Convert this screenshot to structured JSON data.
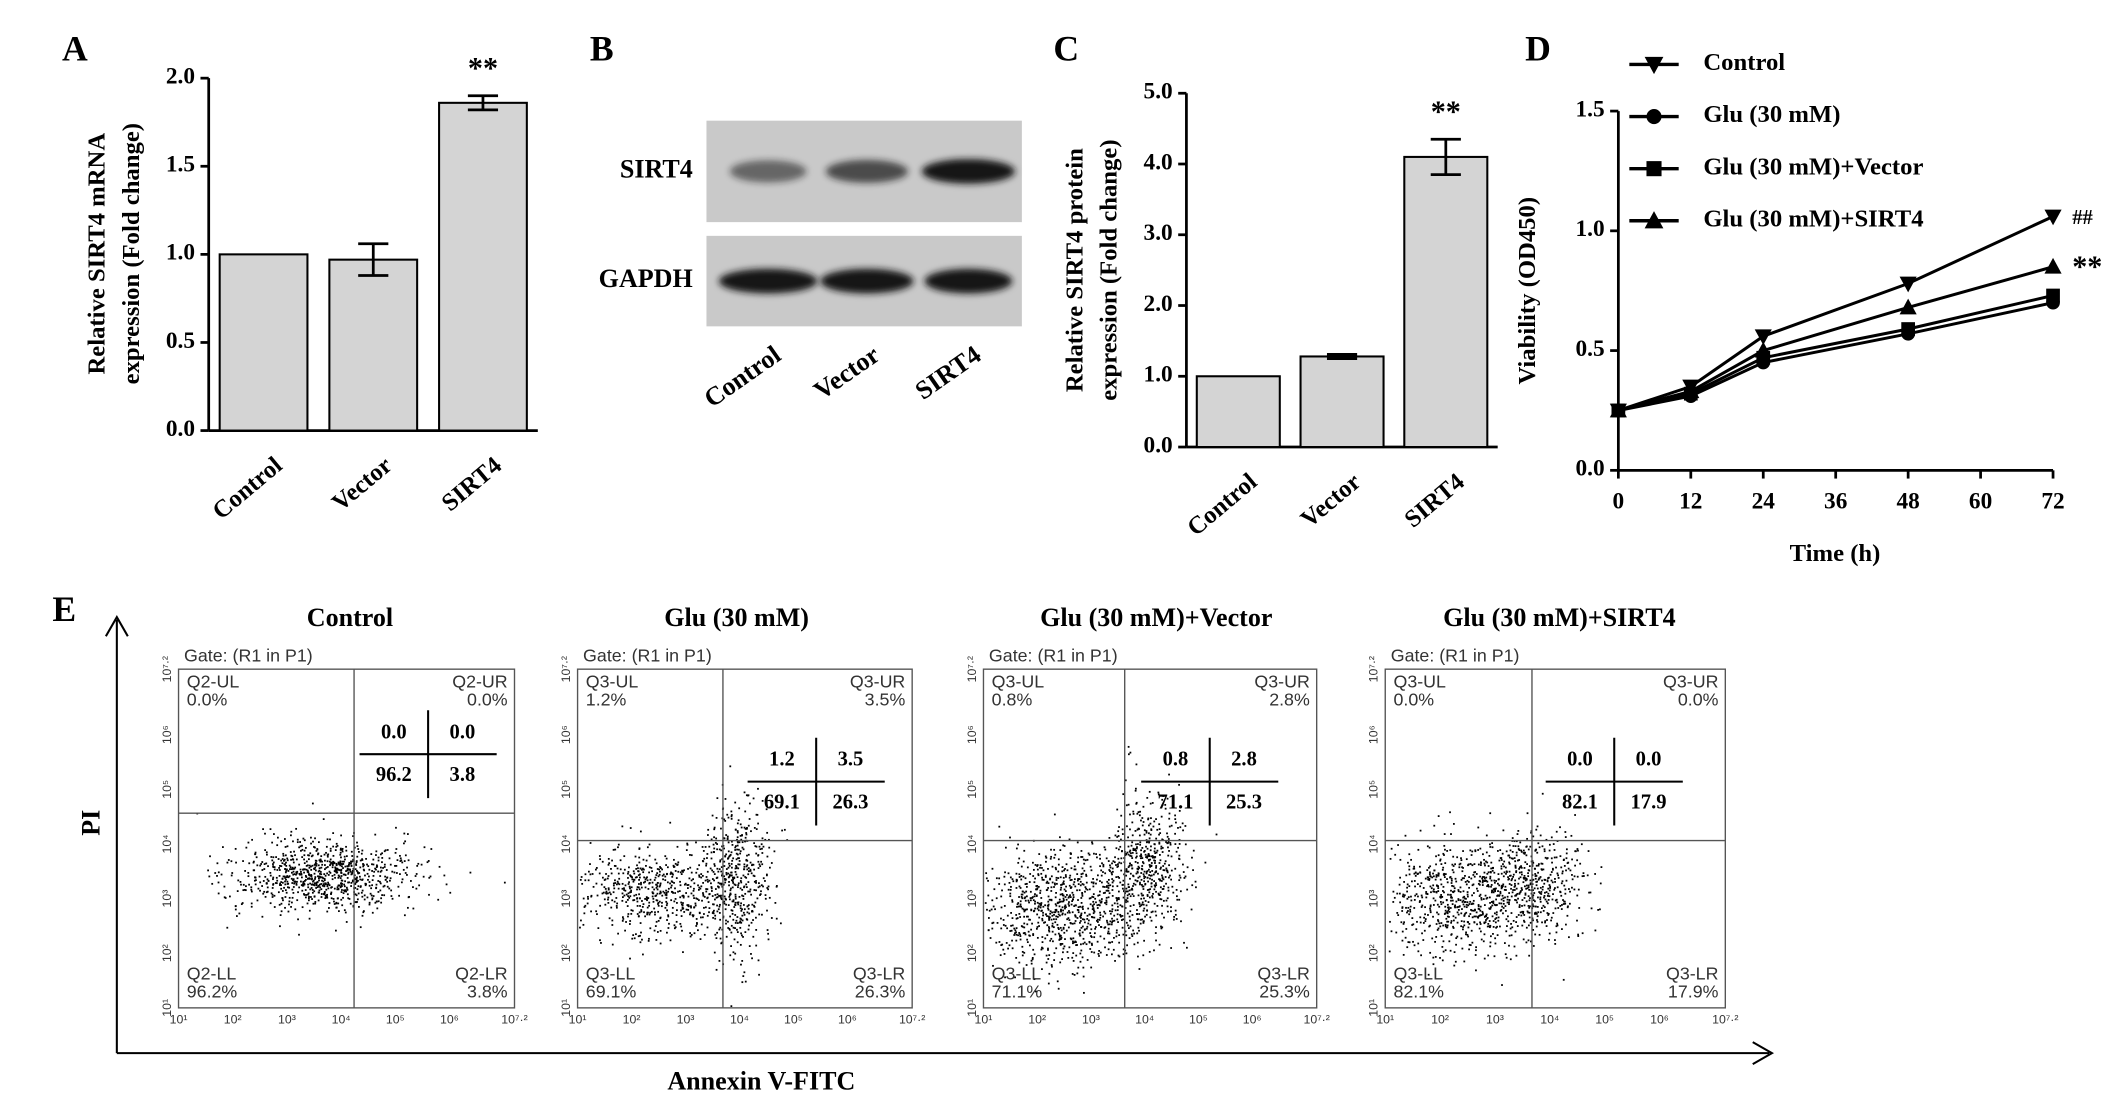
{
  "chart_data": [
    {
      "panel": "A",
      "type": "bar",
      "ylabel": [
        "Relative SIRT4 mRNA",
        "expression (Fold change)"
      ],
      "categories": [
        "Control",
        "Vector",
        "SIRT4"
      ],
      "values": [
        1.0,
        0.97,
        1.86
      ],
      "errors": [
        null,
        0.09,
        0.04
      ],
      "color": "#d4d4d4",
      "ylim": [
        0,
        2.0
      ],
      "yticks": [
        {
          "value": 0,
          "label": "0.0"
        },
        0.5,
        {
          "value": 1,
          "label": "1.0"
        },
        1.5,
        {
          "value": 2,
          "label": "2.0"
        }
      ],
      "annotations": [
        {
          "text": "**",
          "category": 2
        }
      ]
    },
    {
      "panel": "C",
      "type": "bar",
      "ylabel": [
        "Relative SIRT4 protein",
        "expression (Fold change)"
      ],
      "categories": [
        "Control",
        "Vector",
        "SIRT4"
      ],
      "values": [
        1.0,
        1.28,
        4.1
      ],
      "errors": [
        null,
        0.03,
        0.25
      ],
      "color": "#d4d4d4",
      "ylim": [
        0,
        5.0
      ],
      "yticks": [
        {
          "value": 0,
          "label": "0.0"
        },
        {
          "value": 1,
          "label": "1.0"
        },
        {
          "value": 2,
          "label": "2.0"
        },
        {
          "value": 3,
          "label": "3.0"
        },
        {
          "value": 4,
          "label": "4.0"
        },
        {
          "value": 5,
          "label": "5.0"
        }
      ],
      "annotations": [
        {
          "text": "**",
          "category": 2
        }
      ]
    },
    {
      "panel": "D",
      "type": "line",
      "ylabel": "Viability (OD450)",
      "xlabel": "Time (h)",
      "x": [
        0,
        12,
        24,
        48,
        72
      ],
      "xlim": [
        0,
        72
      ],
      "xticks": [
        0,
        12,
        24,
        36,
        48,
        60,
        72
      ],
      "ylim": [
        0,
        1.5
      ],
      "yticks": [
        {
          "value": 0,
          "label": "0.0"
        },
        0.5,
        {
          "value": 1,
          "label": "1.0"
        },
        1.5
      ],
      "legend": "upper left",
      "series": [
        {
          "name": "Control",
          "color": "#000000",
          "marker": "triangle-down",
          "values": [
            0.25,
            0.35,
            0.56,
            0.78,
            1.06
          ]
        },
        {
          "name": "Glu (30 mM)",
          "color": "#000000",
          "marker": "circle",
          "values": [
            0.25,
            0.31,
            0.45,
            0.57,
            0.7
          ]
        },
        {
          "name": "Glu (30 mM)+Vector",
          "color": "#000000",
          "marker": "square",
          "values": [
            0.25,
            0.32,
            0.47,
            0.59,
            0.73
          ]
        },
        {
          "name": "Glu (30 mM)+SIRT4",
          "color": "#000000",
          "marker": "triangle-up",
          "values": [
            0.25,
            0.33,
            0.5,
            0.68,
            0.85
          ]
        }
      ],
      "annotations": [
        {
          "text": "##",
          "series": 0
        },
        {
          "text": "**",
          "series": 3
        }
      ]
    }
  ],
  "blot": {
    "panel": "B",
    "rows": [
      "SIRT4",
      "GAPDH"
    ],
    "lanes": [
      "Control",
      "Vector",
      "SIRT4"
    ]
  },
  "flow": {
    "panel": "E",
    "ylabel": "PI",
    "xlabel": "Annexin V-FITC",
    "axis_ticks": [
      "10¹",
      "10²",
      "10³",
      "10⁴",
      "10⁵",
      "10⁶",
      "10⁷·²"
    ],
    "plots": [
      {
        "title": "Control",
        "gate": "Gate: (R1 in P1)",
        "quadrants": [
          {
            "name": "Q2-UL",
            "percent": "0.0%"
          },
          {
            "name": "Q2-UR",
            "percent": "0.0%"
          },
          {
            "name": "Q2-LL",
            "percent": "96.2%"
          },
          {
            "name": "Q2-LR",
            "percent": "3.8%"
          }
        ],
        "table": [
          "0.0",
          "0.0",
          "96.2",
          "3.8"
        ]
      },
      {
        "title": "Glu (30 mM)",
        "gate": "Gate: (R1 in P1)",
        "quadrants": [
          {
            "name": "Q3-UL",
            "percent": "1.2%"
          },
          {
            "name": "Q3-UR",
            "percent": "3.5%"
          },
          {
            "name": "Q3-LL",
            "percent": "69.1%"
          },
          {
            "name": "Q3-LR",
            "percent": "26.3%"
          }
        ],
        "table": [
          "1.2",
          "3.5",
          "69.1",
          "26.3"
        ]
      },
      {
        "title": "Glu (30 mM)+Vector",
        "gate": "Gate: (R1 in P1)",
        "quadrants": [
          {
            "name": "Q3-UL",
            "percent": "0.8%"
          },
          {
            "name": "Q3-UR",
            "percent": "2.8%"
          },
          {
            "name": "Q3-LL",
            "percent": "71.1%"
          },
          {
            "name": "Q3-LR",
            "percent": "25.3%"
          }
        ],
        "table": [
          "0.8",
          "2.8",
          "71.1",
          "25.3"
        ]
      },
      {
        "title": "Glu (30 mM)+SIRT4",
        "gate": "Gate: (R1 in P1)",
        "quadrants": [
          {
            "name": "Q3-UL",
            "percent": "0.0%"
          },
          {
            "name": "Q3-UR",
            "percent": "0.0%"
          },
          {
            "name": "Q3-LL",
            "percent": "82.1%"
          },
          {
            "name": "Q3-LR",
            "percent": "17.9%"
          }
        ],
        "table": [
          "0.0",
          "0.0",
          "82.1",
          "17.9"
        ]
      }
    ]
  }
}
